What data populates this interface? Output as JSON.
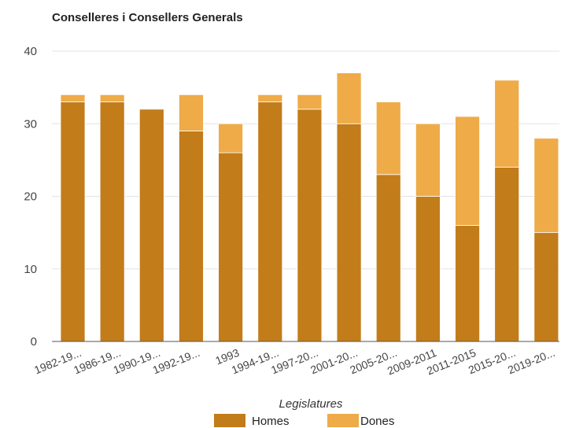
{
  "chart_data": {
    "type": "bar",
    "stacked": true,
    "title": "Conselleres i Consellers Generals",
    "xlabel": "Legislatures",
    "ylabel": "",
    "ylim": [
      0,
      40
    ],
    "yticks": [
      0,
      10,
      20,
      30,
      40
    ],
    "grid": true,
    "legend_position": "bottom",
    "categories": [
      "1982-19...",
      "1986-19...",
      "1990-19...",
      "1992-19...",
      "1993",
      "1994-19...",
      "1997-20...",
      "2001-20...",
      "2005-20...",
      "2009-2011",
      "2011-2015",
      "2015-20...",
      "2019-20..."
    ],
    "series": [
      {
        "name": "Homes",
        "color": "#c27c1a",
        "values": [
          33,
          33,
          32,
          29,
          26,
          33,
          32,
          30,
          23,
          20,
          16,
          24,
          15
        ]
      },
      {
        "name": "Dones",
        "color": "#eeab48",
        "values": [
          1,
          1,
          0,
          5,
          4,
          1,
          2,
          7,
          10,
          10,
          15,
          12,
          13
        ]
      }
    ]
  }
}
